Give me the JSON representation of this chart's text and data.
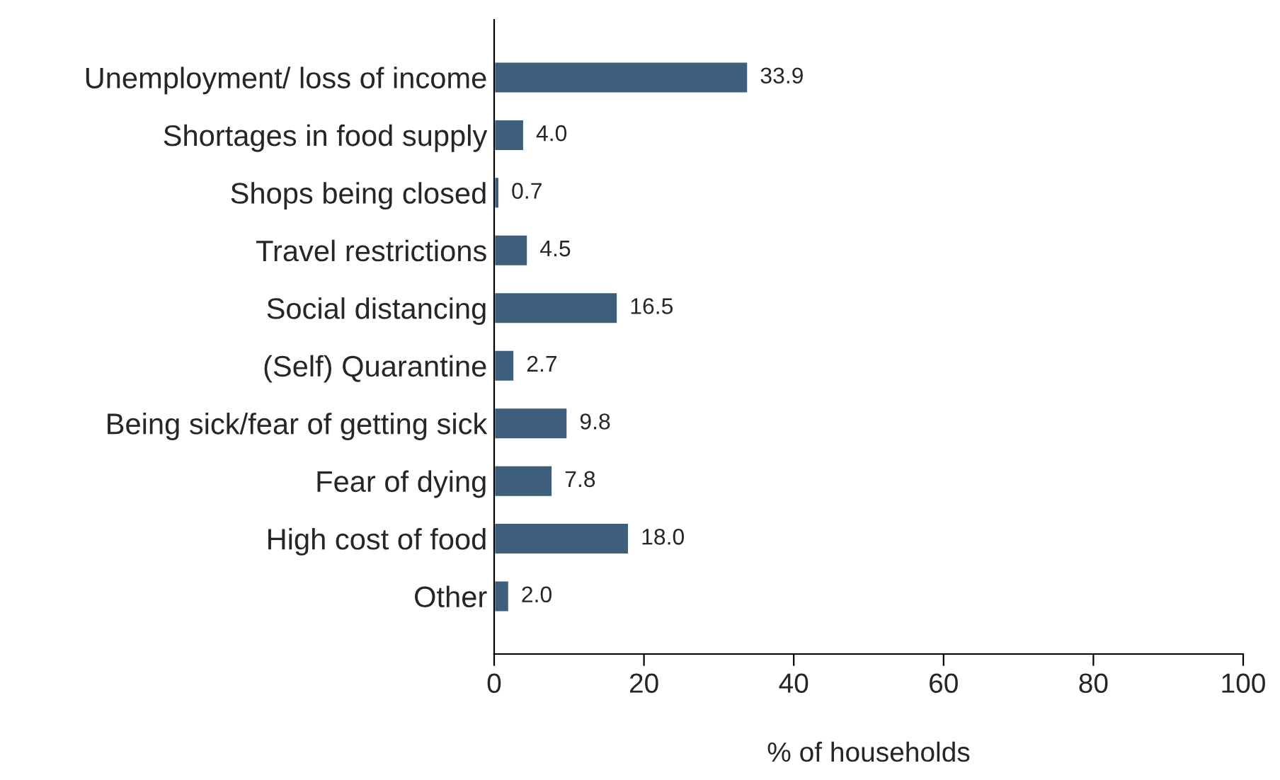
{
  "chart_data": {
    "type": "bar",
    "orientation": "horizontal",
    "xlabel": "% of households",
    "categories": [
      "Unemployment/ loss of income",
      "Shortages in food supply",
      "Shops being closed",
      "Travel restrictions",
      "Social distancing",
      "(Self) Quarantine",
      "Being sick/fear of getting sick",
      "Fear of dying",
      "High cost of food",
      "Other"
    ],
    "values": [
      33.9,
      4.0,
      0.7,
      4.5,
      16.5,
      2.7,
      9.8,
      7.8,
      18.0,
      2.0
    ],
    "value_labels": [
      "33.9",
      "4.0",
      "0.7",
      "4.5",
      "16.5",
      "2.7",
      "9.8",
      "7.8",
      "18.0",
      "2.0"
    ],
    "color": "#3e5f7b",
    "xlim": [
      0,
      100
    ],
    "xticks": [
      0,
      20,
      40,
      60,
      80,
      100
    ],
    "grid": false,
    "legend": false
  }
}
